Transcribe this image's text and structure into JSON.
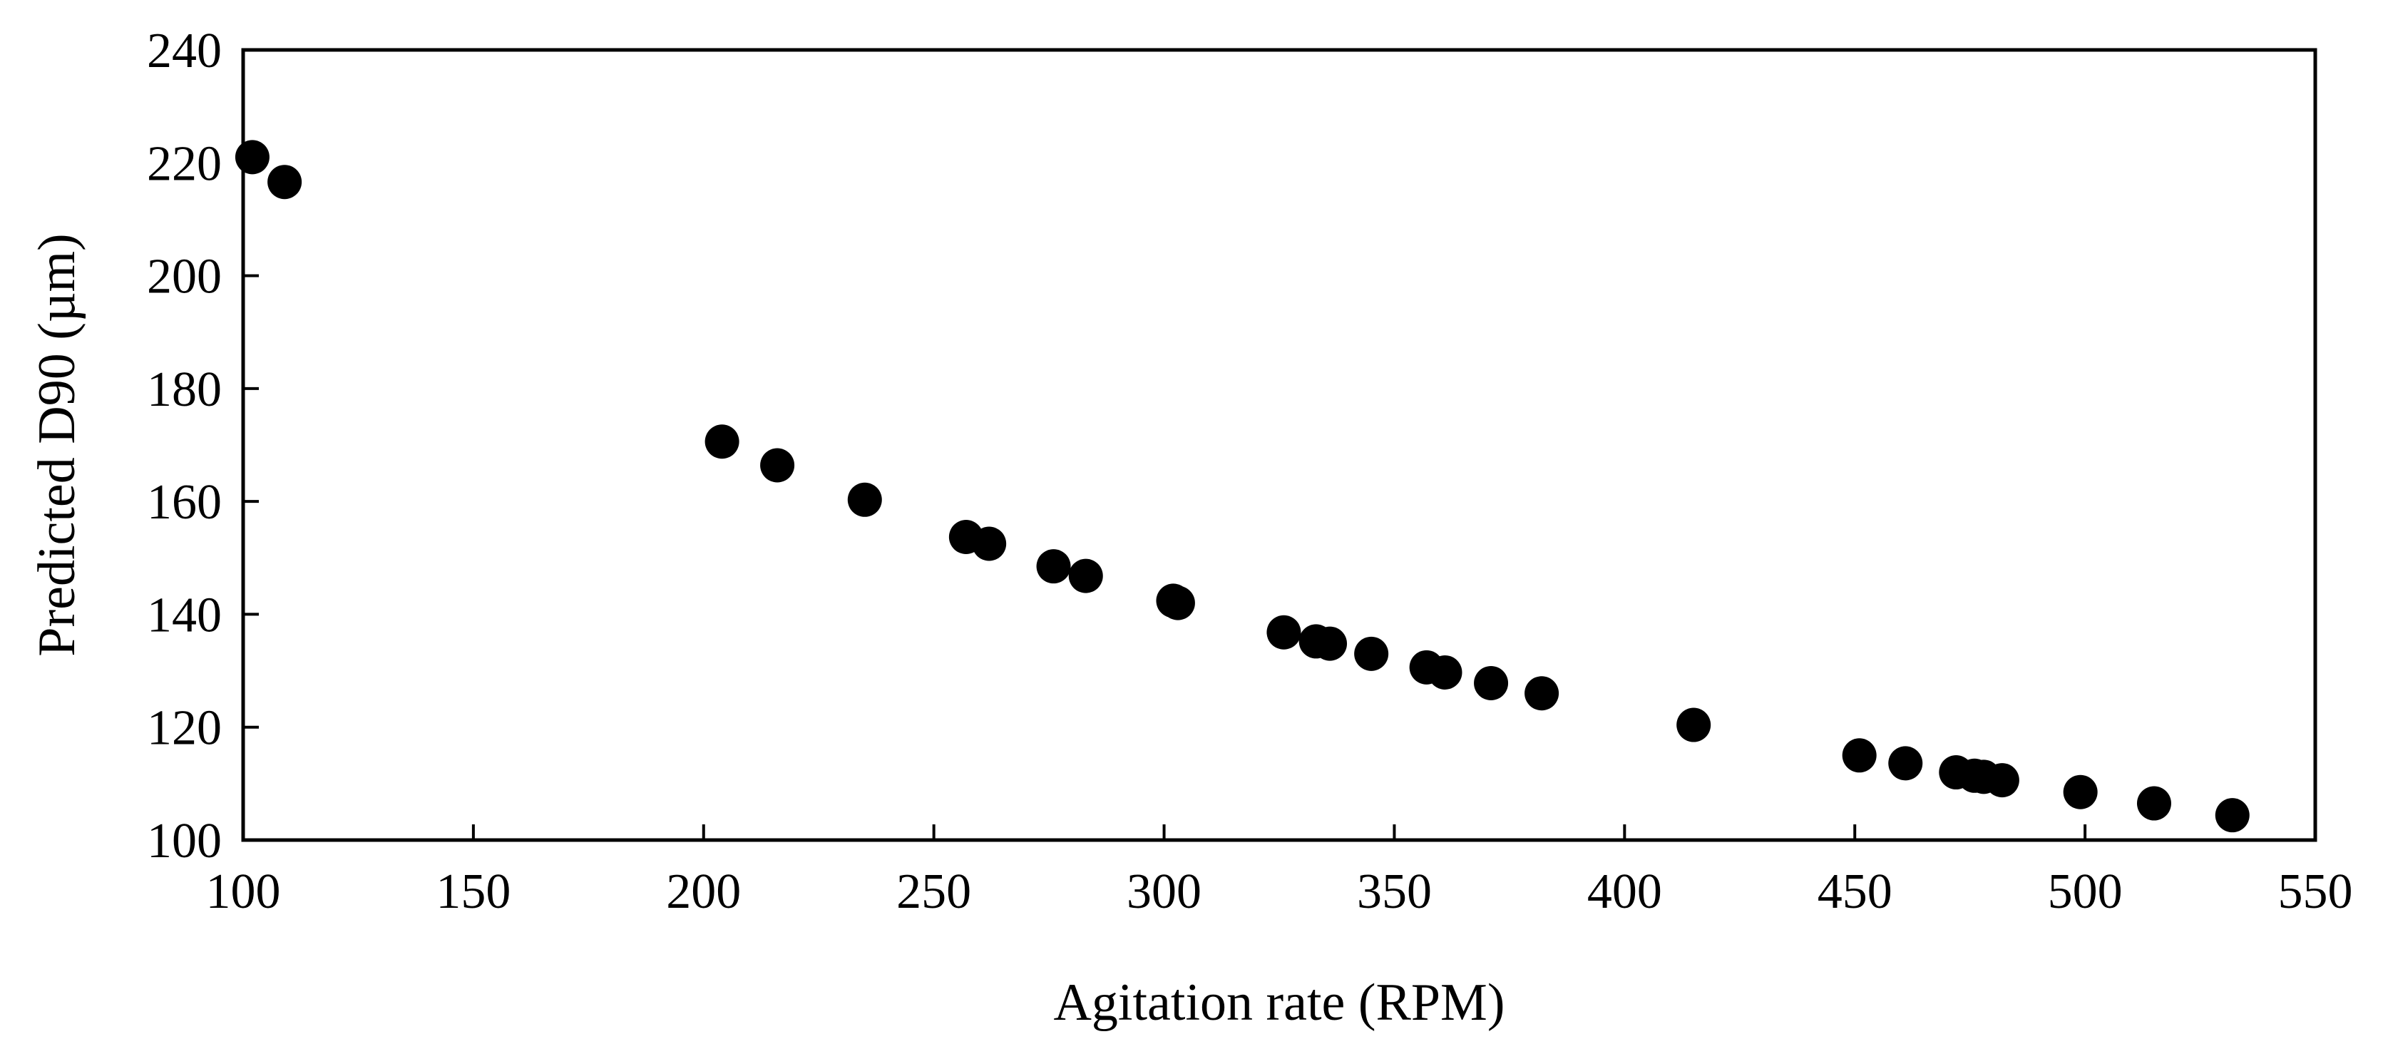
{
  "chart_data": {
    "type": "scatter",
    "title": "",
    "xlabel": "Agitation rate (RPM)",
    "ylabel": "Predicted D90 (µm)",
    "xlim": [
      100,
      550
    ],
    "ylim": [
      100,
      240
    ],
    "xticks": [
      100,
      150,
      200,
      250,
      300,
      350,
      400,
      450,
      500,
      550
    ],
    "yticks": [
      100,
      120,
      140,
      160,
      180,
      200,
      220,
      240
    ],
    "xtick_labels": [
      "100",
      "150",
      "200",
      "250",
      "300",
      "350",
      "400",
      "450",
      "500",
      "550"
    ],
    "ytick_labels": [
      "100",
      "120",
      "140",
      "160",
      "180",
      "200",
      "220",
      "240"
    ],
    "grid": false,
    "legend": "none",
    "marker_color": "#000000",
    "series": [
      {
        "name": "Predicted D90",
        "points": [
          {
            "x": 102,
            "y": 221
          },
          {
            "x": 109,
            "y": 216.6
          },
          {
            "x": 204,
            "y": 170.6
          },
          {
            "x": 216,
            "y": 166.4
          },
          {
            "x": 235,
            "y": 160.3
          },
          {
            "x": 257,
            "y": 153.7
          },
          {
            "x": 262,
            "y": 152.5
          },
          {
            "x": 276,
            "y": 148.5
          },
          {
            "x": 283,
            "y": 146.8
          },
          {
            "x": 302,
            "y": 142.4
          },
          {
            "x": 303,
            "y": 142
          },
          {
            "x": 326,
            "y": 136.8
          },
          {
            "x": 333,
            "y": 135.2
          },
          {
            "x": 336,
            "y": 134.8
          },
          {
            "x": 345,
            "y": 133
          },
          {
            "x": 357,
            "y": 130.6
          },
          {
            "x": 361,
            "y": 129.7
          },
          {
            "x": 371,
            "y": 127.8
          },
          {
            "x": 382,
            "y": 126
          },
          {
            "x": 415,
            "y": 120.4
          },
          {
            "x": 451,
            "y": 115
          },
          {
            "x": 461,
            "y": 113.6
          },
          {
            "x": 472,
            "y": 112
          },
          {
            "x": 476,
            "y": 111.4
          },
          {
            "x": 478,
            "y": 111.2
          },
          {
            "x": 482,
            "y": 110.6
          },
          {
            "x": 499,
            "y": 108.5
          },
          {
            "x": 515,
            "y": 106.5
          },
          {
            "x": 532,
            "y": 104.4
          }
        ]
      }
    ]
  }
}
